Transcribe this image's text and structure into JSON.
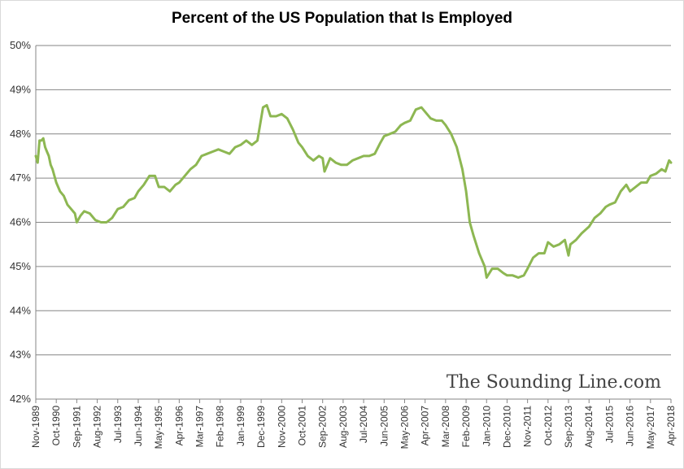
{
  "chart_data": {
    "type": "line",
    "title": "Percent of the US Population that Is Employed",
    "xlabel": "",
    "ylabel": "",
    "ylim": [
      42,
      50
    ],
    "y_tick_labels": [
      "42%",
      "43%",
      "44%",
      "45%",
      "46%",
      "47%",
      "48%",
      "49%",
      "50%"
    ],
    "x_tick_labels": [
      "Nov-1989",
      "Oct-1990",
      "Sep-1991",
      "Aug-1992",
      "Jul-1993",
      "Jun-1994",
      "May-1995",
      "Apr-1996",
      "Mar-1997",
      "Feb-1998",
      "Jan-1999",
      "Dec-1999",
      "Nov-2000",
      "Oct-2001",
      "Sep-2002",
      "Aug-2003",
      "Jul-2004",
      "Jun-2005",
      "May-2006",
      "Apr-2007",
      "Mar-2008",
      "Feb-2009",
      "Jan-2010",
      "Dec-2010",
      "Nov-2011",
      "Oct-2012",
      "Sep-2013",
      "Aug-2014",
      "Jul-2015",
      "Jun-2016",
      "May-2017",
      "Apr-2018"
    ],
    "grid": true,
    "legend": "none",
    "series": [
      {
        "color": "#8db752",
        "points": [
          [
            "Nov-1989",
            47.5
          ],
          [
            "Dec-1989",
            47.35
          ],
          [
            "Jan-1990",
            47.85
          ],
          [
            "Feb-1990",
            47.85
          ],
          [
            "Mar-1990",
            47.9
          ],
          [
            "Apr-1990",
            47.7
          ],
          [
            "May-1990",
            47.6
          ],
          [
            "Jun-1990",
            47.5
          ],
          [
            "Jul-1990",
            47.3
          ],
          [
            "Aug-1990",
            47.2
          ],
          [
            "Oct-1990",
            46.9
          ],
          [
            "Dec-1990",
            46.7
          ],
          [
            "Feb-1991",
            46.6
          ],
          [
            "Apr-1991",
            46.4
          ],
          [
            "Jun-1991",
            46.3
          ],
          [
            "Aug-1991",
            46.2
          ],
          [
            "Sep-1991",
            46.0
          ],
          [
            "Nov-1991",
            46.15
          ],
          [
            "Jan-1992",
            46.25
          ],
          [
            "Apr-1992",
            46.2
          ],
          [
            "Jul-1992",
            46.05
          ],
          [
            "Oct-1992",
            46.0
          ],
          [
            "Jan-1993",
            46.0
          ],
          [
            "Apr-1993",
            46.1
          ],
          [
            "Jul-1993",
            46.3
          ],
          [
            "Oct-1993",
            46.35
          ],
          [
            "Jan-1994",
            46.5
          ],
          [
            "Apr-1994",
            46.55
          ],
          [
            "Jun-1994",
            46.7
          ],
          [
            "Sep-1994",
            46.85
          ],
          [
            "Dec-1994",
            47.05
          ],
          [
            "Mar-1995",
            47.05
          ],
          [
            "May-1995",
            46.8
          ],
          [
            "Aug-1995",
            46.8
          ],
          [
            "Nov-1995",
            46.7
          ],
          [
            "Feb-1996",
            46.85
          ],
          [
            "Apr-1996",
            46.9
          ],
          [
            "Jul-1996",
            47.05
          ],
          [
            "Oct-1996",
            47.2
          ],
          [
            "Jan-1997",
            47.3
          ],
          [
            "Apr-1997",
            47.5
          ],
          [
            "Jul-1997",
            47.55
          ],
          [
            "Oct-1997",
            47.6
          ],
          [
            "Jan-1998",
            47.65
          ],
          [
            "Apr-1998",
            47.6
          ],
          [
            "Jul-1998",
            47.55
          ],
          [
            "Oct-1998",
            47.7
          ],
          [
            "Jan-1999",
            47.75
          ],
          [
            "Apr-1999",
            47.85
          ],
          [
            "Jul-1999",
            47.75
          ],
          [
            "Oct-1999",
            47.85
          ],
          [
            "Jan-2000",
            48.6
          ],
          [
            "Mar-2000",
            48.65
          ],
          [
            "May-2000",
            48.4
          ],
          [
            "Aug-2000",
            48.4
          ],
          [
            "Nov-2000",
            48.45
          ],
          [
            "Feb-2001",
            48.35
          ],
          [
            "May-2001",
            48.1
          ],
          [
            "Aug-2001",
            47.8
          ],
          [
            "Oct-2001",
            47.7
          ],
          [
            "Jan-2002",
            47.5
          ],
          [
            "Apr-2002",
            47.4
          ],
          [
            "Jul-2002",
            47.5
          ],
          [
            "Sep-2002",
            47.45
          ],
          [
            "Oct-2002",
            47.15
          ],
          [
            "Jan-2003",
            47.45
          ],
          [
            "Apr-2003",
            47.35
          ],
          [
            "Jul-2003",
            47.3
          ],
          [
            "Oct-2003",
            47.3
          ],
          [
            "Jan-2004",
            47.4
          ],
          [
            "Apr-2004",
            47.45
          ],
          [
            "Jul-2004",
            47.5
          ],
          [
            "Oct-2004",
            47.5
          ],
          [
            "Jan-2005",
            47.55
          ],
          [
            "Apr-2005",
            47.8
          ],
          [
            "Jun-2005",
            47.95
          ],
          [
            "Sep-2005",
            48.0
          ],
          [
            "Dec-2005",
            48.05
          ],
          [
            "Mar-2006",
            48.2
          ],
          [
            "May-2006",
            48.25
          ],
          [
            "Aug-2006",
            48.3
          ],
          [
            "Nov-2006",
            48.55
          ],
          [
            "Feb-2007",
            48.6
          ],
          [
            "Apr-2007",
            48.5
          ],
          [
            "Jul-2007",
            48.35
          ],
          [
            "Oct-2007",
            48.3
          ],
          [
            "Jan-2008",
            48.3
          ],
          [
            "Mar-2008",
            48.2
          ],
          [
            "Jun-2008",
            48.0
          ],
          [
            "Sep-2008",
            47.7
          ],
          [
            "Dec-2008",
            47.2
          ],
          [
            "Feb-2009",
            46.7
          ],
          [
            "Apr-2009",
            46.0
          ],
          [
            "Jun-2009",
            45.7
          ],
          [
            "Sep-2009",
            45.3
          ],
          [
            "Dec-2009",
            45.0
          ],
          [
            "Jan-2010",
            44.75
          ],
          [
            "Apr-2010",
            44.95
          ],
          [
            "Jul-2010",
            44.95
          ],
          [
            "Oct-2010",
            44.85
          ],
          [
            "Dec-2010",
            44.8
          ],
          [
            "Mar-2011",
            44.8
          ],
          [
            "Jun-2011",
            44.75
          ],
          [
            "Sep-2011",
            44.8
          ],
          [
            "Nov-2011",
            44.95
          ],
          [
            "Feb-2012",
            45.2
          ],
          [
            "May-2012",
            45.3
          ],
          [
            "Aug-2012",
            45.3
          ],
          [
            "Oct-2012",
            45.55
          ],
          [
            "Jan-2013",
            45.45
          ],
          [
            "Apr-2013",
            45.5
          ],
          [
            "Jul-2013",
            45.6
          ],
          [
            "Sep-2013",
            45.25
          ],
          [
            "Oct-2013",
            45.5
          ],
          [
            "Jan-2014",
            45.6
          ],
          [
            "Apr-2014",
            45.75
          ],
          [
            "Aug-2014",
            45.9
          ],
          [
            "Nov-2014",
            46.1
          ],
          [
            "Feb-2015",
            46.2
          ],
          [
            "May-2015",
            46.35
          ],
          [
            "Jul-2015",
            46.4
          ],
          [
            "Oct-2015",
            46.45
          ],
          [
            "Jan-2016",
            46.7
          ],
          [
            "Apr-2016",
            46.85
          ],
          [
            "Jun-2016",
            46.7
          ],
          [
            "Sep-2016",
            46.8
          ],
          [
            "Dec-2016",
            46.9
          ],
          [
            "Mar-2017",
            46.9
          ],
          [
            "May-2017",
            47.05
          ],
          [
            "Aug-2017",
            47.1
          ],
          [
            "Nov-2017",
            47.2
          ],
          [
            "Jan-2018",
            47.15
          ],
          [
            "Mar-2018",
            47.4
          ],
          [
            "Apr-2018",
            47.35
          ]
        ]
      }
    ]
  },
  "watermark": "The Sounding Line.com"
}
